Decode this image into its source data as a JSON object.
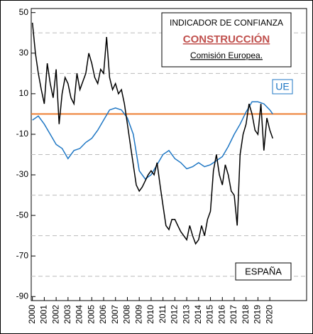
{
  "chart_data": {
    "type": "line",
    "annotations": {
      "box_title": "INDICADOR DE CONFIANZA",
      "box_subtitle": "CONSTRUCCIÓN",
      "box_source": "Comisión Europea.",
      "ue_label": "UE",
      "es_label": "ESPAÑA"
    },
    "xlim": [
      1999.9,
      2023.1
    ],
    "xticks": [
      2000,
      2001,
      2002,
      2003,
      2004,
      2005,
      2006,
      2007,
      2008,
      2009,
      2010,
      2011,
      2012,
      2013,
      2014,
      2015,
      2016,
      2017,
      2018,
      2019,
      2020
    ],
    "ylim": [
      -92,
      52
    ],
    "yticks": [
      -90,
      -70,
      -50,
      -30,
      -10,
      10,
      30,
      50
    ],
    "grid_lines": [
      40,
      20,
      -20,
      -40,
      -60,
      -80
    ],
    "reference_line": {
      "value": 0,
      "color": "#ed7d31"
    },
    "series": [
      {
        "name": "ESPAÑA",
        "color": "#000000",
        "x": [
          2000,
          2000.25,
          2000.5,
          2000.75,
          2001,
          2001.25,
          2001.5,
          2001.75,
          2002,
          2002.25,
          2002.5,
          2002.75,
          2003,
          2003.25,
          2003.5,
          2003.75,
          2004,
          2004.25,
          2004.5,
          2004.75,
          2005,
          2005.25,
          2005.5,
          2005.75,
          2006,
          2006.25,
          2006.5,
          2006.75,
          2007,
          2007.25,
          2007.5,
          2007.75,
          2008,
          2008.25,
          2008.5,
          2008.75,
          2009,
          2009.25,
          2009.5,
          2009.75,
          2010,
          2010.25,
          2010.5,
          2010.75,
          2011,
          2011.25,
          2011.5,
          2011.75,
          2012,
          2012.25,
          2012.5,
          2012.75,
          2013,
          2013.25,
          2013.5,
          2013.75,
          2014,
          2014.25,
          2014.5,
          2014.75,
          2015,
          2015.25,
          2015.5,
          2015.75,
          2016,
          2016.25,
          2016.5,
          2016.75,
          2017,
          2017.25,
          2017.5,
          2017.75,
          2018,
          2018.25,
          2018.5,
          2018.75,
          2019,
          2019.25,
          2019.5,
          2019.75,
          2020,
          2020.25
        ],
        "values": [
          45,
          30,
          20,
          12,
          5,
          25,
          15,
          8,
          22,
          -5,
          10,
          18,
          15,
          8,
          5,
          20,
          12,
          16,
          20,
          30,
          25,
          18,
          15,
          22,
          20,
          38,
          18,
          12,
          15,
          10,
          12,
          5,
          -5,
          -15,
          -25,
          -35,
          -38,
          -36,
          -33,
          -30,
          -28,
          -30,
          -24,
          -35,
          -45,
          -55,
          -57,
          -52,
          -52,
          -55,
          -58,
          -60,
          -62,
          -55,
          -60,
          -64,
          -62,
          -55,
          -60,
          -52,
          -48,
          -28,
          -20,
          -30,
          -35,
          -25,
          -30,
          -38,
          -40,
          -55,
          -20,
          -10,
          -5,
          5,
          0,
          -8,
          -10,
          5,
          -18,
          -2,
          -8,
          -12
        ]
      },
      {
        "name": "UE",
        "color": "#1f77c4",
        "x": [
          2000,
          2000.5,
          2001,
          2001.5,
          2002,
          2002.5,
          2003,
          2003.5,
          2004,
          2004.5,
          2005,
          2005.5,
          2006,
          2006.5,
          2007,
          2007.5,
          2008,
          2008.5,
          2009,
          2009.5,
          2010,
          2010.5,
          2011,
          2011.5,
          2012,
          2012.5,
          2013,
          2013.5,
          2014,
          2014.5,
          2015,
          2015.5,
          2016,
          2016.5,
          2017,
          2017.5,
          2018,
          2018.5,
          2019,
          2019.5,
          2020,
          2020.25
        ],
        "values": [
          -3,
          -1,
          -5,
          -10,
          -15,
          -17,
          -22,
          -18,
          -17,
          -14,
          -12,
          -8,
          -3,
          2,
          3,
          2,
          -2,
          -10,
          -28,
          -32,
          -30,
          -25,
          -20,
          -18,
          -22,
          -24,
          -27,
          -26,
          -24,
          -26,
          -25,
          -23,
          -21,
          -16,
          -10,
          -5,
          1,
          6,
          6,
          5,
          2,
          0
        ]
      }
    ]
  }
}
